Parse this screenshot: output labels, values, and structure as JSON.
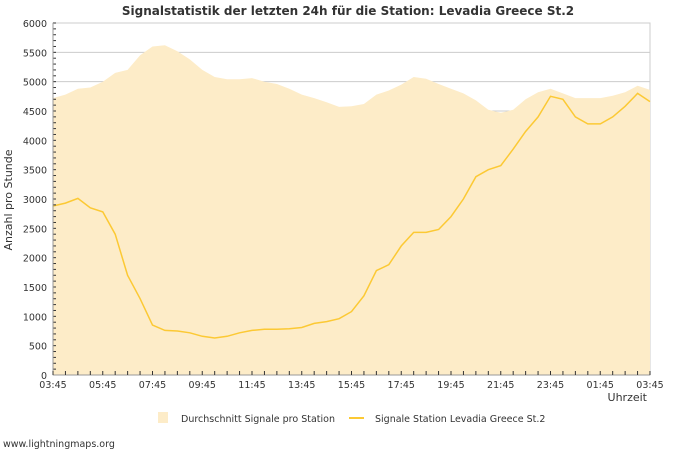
{
  "chart_data": {
    "type": "area",
    "title": "Signalstatistik der letzten 24h für die Station: Levadia Greece St.2",
    "xlabel": "Uhrzeit",
    "ylabel": "Anzahl pro Stunde",
    "ylim": [
      0,
      6000
    ],
    "yticks": [
      0,
      500,
      1000,
      1500,
      2000,
      2500,
      3000,
      3500,
      4000,
      4500,
      5000,
      5500,
      6000
    ],
    "xtick_labels": [
      "03:45",
      "05:45",
      "07:45",
      "09:45",
      "11:45",
      "13:45",
      "15:45",
      "17:45",
      "19:45",
      "21:45",
      "23:45",
      "01:45",
      "03:45"
    ],
    "x_hours_from_start": [
      0,
      0.5,
      1,
      1.5,
      2,
      2.5,
      3,
      3.5,
      4,
      4.5,
      5,
      5.5,
      6,
      6.5,
      7,
      7.5,
      8,
      8.5,
      9,
      9.5,
      10,
      10.5,
      11,
      11.5,
      12,
      12.5,
      13,
      13.5,
      14,
      14.5,
      15,
      15.5,
      16,
      16.5,
      17,
      17.5,
      18,
      18.5,
      19,
      19.5,
      20,
      20.5,
      21,
      21.5,
      22,
      22.5,
      23,
      23.5,
      24
    ],
    "series": [
      {
        "name": "Durchschnitt Signale pro Station",
        "type": "area",
        "color": "#fdecc8",
        "values": [
          4720,
          4780,
          4880,
          4900,
          5000,
          5150,
          5200,
          5450,
          5600,
          5620,
          5520,
          5380,
          5200,
          5080,
          5040,
          5040,
          5060,
          5000,
          4960,
          4880,
          4780,
          4720,
          4650,
          4570,
          4580,
          4620,
          4780,
          4850,
          4950,
          5080,
          5050,
          4960,
          4880,
          4800,
          4680,
          4520,
          4470,
          4520,
          4700,
          4820,
          4880,
          4800,
          4720,
          4720,
          4720,
          4760,
          4820,
          4930,
          4860
        ]
      },
      {
        "name": "Signale Station Levadia Greece St.2",
        "type": "line",
        "color": "#fcc934",
        "values": [
          2880,
          2930,
          3010,
          2850,
          2780,
          2400,
          1700,
          1300,
          850,
          760,
          750,
          720,
          660,
          630,
          660,
          720,
          760,
          780,
          780,
          790,
          810,
          880,
          910,
          960,
          1080,
          1350,
          1780,
          1880,
          2200,
          2430,
          2430,
          2480,
          2700,
          3000,
          3380,
          3500,
          3570,
          3850,
          4150,
          4400,
          4750,
          4700,
          4400,
          4280,
          4280,
          4400,
          4580,
          4800,
          4660
        ]
      }
    ],
    "legend": "bottom",
    "grid": true
  },
  "footer": "www.lightningmaps.org"
}
